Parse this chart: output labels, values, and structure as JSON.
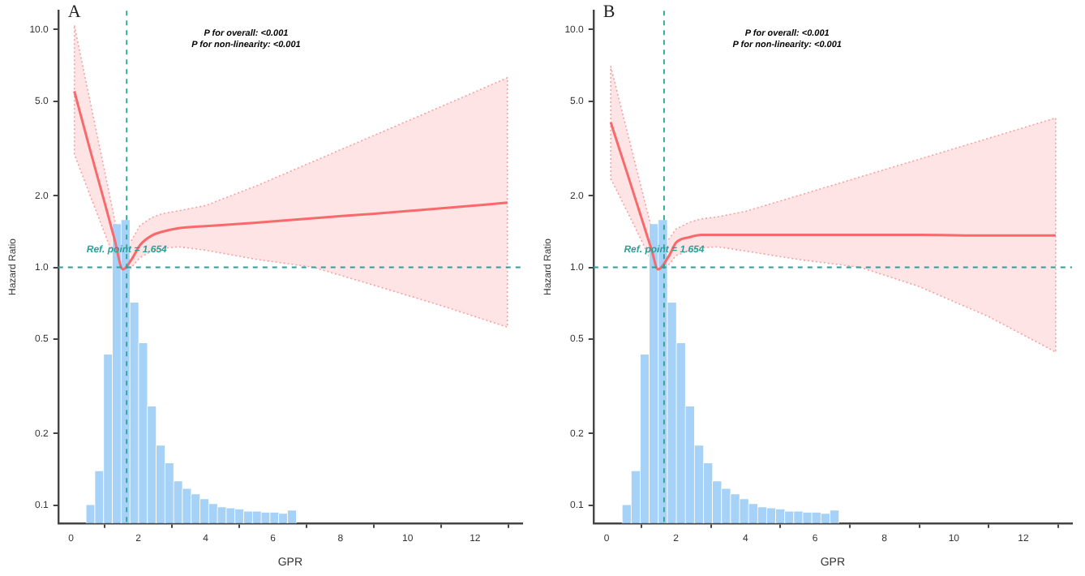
{
  "chart_data": [
    {
      "type": "line",
      "title": "A",
      "xlabel": "GPR",
      "ylabel": "Hazard Ratio",
      "log": "y",
      "grid": false,
      "legend": false,
      "xlim": [
        -0.38,
        13.4
      ],
      "ylim": [
        0.084,
        12
      ],
      "xticks": [
        0,
        2,
        4,
        6,
        8,
        10,
        12
      ],
      "yticks": [
        {
          "value": 0.1,
          "label": "0.1"
        },
        {
          "value": 0.2,
          "label": "0.2"
        },
        {
          "value": 0.5,
          "label": "0.5"
        },
        {
          "value": 1,
          "label": "1.0"
        },
        {
          "value": 2,
          "label": "2.0"
        },
        {
          "value": 5,
          "label": "5.0"
        },
        {
          "value": 10,
          "label": "10.0"
        }
      ],
      "series": [
        {
          "type": "histogram",
          "color": "#a6d2f7",
          "bins": [
            0.45,
            0.71,
            0.97,
            1.23,
            1.49,
            1.75,
            2.01,
            2.27,
            2.53,
            2.79,
            3.05,
            3.31,
            3.57,
            3.83,
            4.09,
            4.35,
            4.61,
            4.87,
            5.13,
            5.39,
            5.65,
            5.91,
            6.17,
            6.43,
            6.69
          ],
          "values": [
            0.1,
            0.139,
            0.43,
            1.52,
            1.58,
            0.71,
            0.48,
            0.26,
            0.178,
            0.15,
            0.126,
            0.117,
            0.111,
            0.106,
            0.101,
            0.098,
            0.097,
            0.096,
            0.094,
            0.094,
            0.093,
            0.093,
            0.092,
            0.095
          ]
        },
        {
          "type": "line",
          "color": "#f8696b",
          "x": [
            0.1,
            0.6,
            1.0,
            1.3,
            1.54,
            1.8,
            2.05,
            2.4,
            2.7,
            3.2,
            4,
            5.5,
            7.2,
            9,
            11,
            12.96
          ],
          "values": [
            5.5,
            3.0,
            1.87,
            1.3,
            0.98,
            1.08,
            1.24,
            1.36,
            1.41,
            1.46,
            1.49,
            1.54,
            1.61,
            1.68,
            1.77,
            1.87
          ],
          "lower": [
            2.99,
            1.95,
            1.39,
            1.08,
            0.88,
            1.0,
            1.1,
            1.17,
            1.2,
            1.22,
            1.18,
            1.08,
            1.0,
            0.84,
            0.69,
            0.56
          ],
          "upper": [
            10.4,
            4.75,
            2.54,
            1.58,
            1.1,
            1.3,
            1.5,
            1.62,
            1.68,
            1.73,
            1.82,
            2.2,
            2.79,
            3.59,
            4.75,
            6.27
          ]
        }
      ],
      "ref_lines": [
        {
          "axis": "x",
          "value": 1.654,
          "color": "#2aa198",
          "line_style": "dashed"
        },
        {
          "axis": "y",
          "value": 1,
          "color": "#2aa198",
          "line_style": "dashed"
        }
      ],
      "annotations": [
        "P for overall: <0.001",
        "P for non-linearity: <0.001",
        {
          "text": "Ref. point = 1.654",
          "x": 1.654,
          "y": 1
        }
      ]
    },
    {
      "type": "line",
      "title": "B",
      "xlabel": "GPR",
      "ylabel": "Hazard Ratio",
      "log": "y",
      "grid": false,
      "legend": false,
      "xlim": [
        -0.38,
        13.4
      ],
      "ylim": [
        0.084,
        12
      ],
      "xticks": [
        0,
        2,
        4,
        6,
        8,
        10,
        12
      ],
      "yticks": [
        {
          "value": 0.1,
          "label": "0.1"
        },
        {
          "value": 0.2,
          "label": "0.2"
        },
        {
          "value": 0.5,
          "label": "0.5"
        },
        {
          "value": 1,
          "label": "1.0"
        },
        {
          "value": 2,
          "label": "2.0"
        },
        {
          "value": 5,
          "label": "5.0"
        },
        {
          "value": 10,
          "label": "10.0"
        }
      ],
      "series": [
        {
          "type": "histogram",
          "color": "#a6d2f7",
          "bins": [
            0.45,
            0.71,
            0.97,
            1.23,
            1.49,
            1.75,
            2.01,
            2.27,
            2.53,
            2.79,
            3.05,
            3.31,
            3.57,
            3.83,
            4.09,
            4.35,
            4.61,
            4.87,
            5.13,
            5.39,
            5.65,
            5.91,
            6.17,
            6.43,
            6.69
          ],
          "values": [
            0.1,
            0.139,
            0.43,
            1.52,
            1.58,
            0.71,
            0.48,
            0.26,
            0.178,
            0.15,
            0.126,
            0.117,
            0.111,
            0.106,
            0.101,
            0.098,
            0.097,
            0.096,
            0.094,
            0.094,
            0.093,
            0.093,
            0.092,
            0.095
          ]
        },
        {
          "type": "line",
          "color": "#f8696b",
          "x": [
            0.12,
            0.6,
            1.0,
            1.3,
            1.48,
            1.8,
            2.0,
            2.4,
            2.73,
            3.2,
            4,
            5.5,
            7.3,
            9,
            11,
            12.93
          ],
          "values": [
            4.07,
            2.47,
            1.62,
            1.18,
            0.98,
            1.12,
            1.27,
            1.34,
            1.37,
            1.37,
            1.37,
            1.37,
            1.37,
            1.37,
            1.36,
            1.36
          ],
          "lower": [
            2.36,
            1.71,
            1.3,
            1.05,
            0.93,
            1.03,
            1.12,
            1.18,
            1.21,
            1.22,
            1.17,
            1.08,
            1.0,
            0.83,
            0.62,
            0.44
          ],
          "upper": [
            7.0,
            3.69,
            2.16,
            1.45,
            1.14,
            1.32,
            1.45,
            1.55,
            1.6,
            1.63,
            1.72,
            2.0,
            2.4,
            2.85,
            3.49,
            4.25
          ]
        }
      ],
      "ref_lines": [
        {
          "axis": "x",
          "value": 1.654,
          "color": "#2aa198",
          "line_style": "dashed"
        },
        {
          "axis": "y",
          "value": 1,
          "color": "#2aa198",
          "line_style": "dashed"
        }
      ],
      "annotations": [
        "P for overall: <0.001",
        "P for non-linearity: <0.001",
        {
          "text": "Ref. point = 1.654",
          "x": 1.654,
          "y": 1
        }
      ]
    }
  ]
}
